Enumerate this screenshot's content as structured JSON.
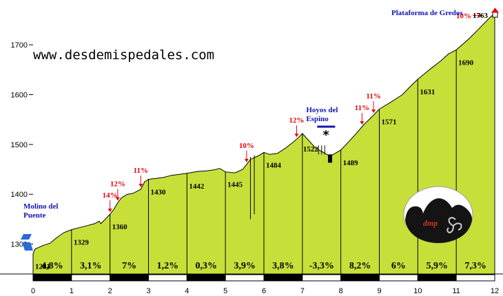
{
  "website": "www.desdemispedales.com",
  "logo": {
    "text": "dmp"
  },
  "colors": {
    "fill": "#c8df3a",
    "stroke": "#000000",
    "steep": "#e8000b",
    "place": "#1414b4"
  },
  "chart_data": {
    "type": "area",
    "xlim": [
      0,
      12
    ],
    "ylim": [
      1240,
      1790
    ],
    "x_ticks": [
      "0",
      "1",
      "2",
      "3",
      "4",
      "5",
      "6",
      "7",
      "8",
      "9",
      "10",
      "11",
      "12"
    ],
    "y_ticks": [
      1300,
      1400,
      1500,
      1600,
      1700
    ],
    "profile": [
      [
        0,
        1281
      ],
      [
        0.05,
        1290
      ],
      [
        0.25,
        1297
      ],
      [
        0.45,
        1302
      ],
      [
        0.6,
        1312
      ],
      [
        0.8,
        1323
      ],
      [
        1,
        1329
      ],
      [
        1.2,
        1333
      ],
      [
        1.4,
        1337
      ],
      [
        1.6,
        1341
      ],
      [
        1.72,
        1346
      ],
      [
        1.76,
        1341
      ],
      [
        1.85,
        1348
      ],
      [
        2,
        1360
      ],
      [
        2.1,
        1370
      ],
      [
        2.2,
        1383
      ],
      [
        2.3,
        1393
      ],
      [
        2.45,
        1400
      ],
      [
        2.6,
        1402
      ],
      [
        2.8,
        1410
      ],
      [
        2.9,
        1425
      ],
      [
        3,
        1430
      ],
      [
        3.2,
        1432
      ],
      [
        3.4,
        1434
      ],
      [
        3.6,
        1438
      ],
      [
        3.8,
        1440
      ],
      [
        4,
        1442
      ],
      [
        4.3,
        1446
      ],
      [
        4.5,
        1447
      ],
      [
        4.7,
        1449
      ],
      [
        4.85,
        1452
      ],
      [
        5,
        1445
      ],
      [
        5.25,
        1443
      ],
      [
        5.45,
        1450
      ],
      [
        5.55,
        1460
      ],
      [
        5.65,
        1470
      ],
      [
        5.85,
        1477
      ],
      [
        6,
        1484
      ],
      [
        6.15,
        1480
      ],
      [
        6.35,
        1482
      ],
      [
        6.55,
        1492
      ],
      [
        6.75,
        1504
      ],
      [
        6.9,
        1514
      ],
      [
        7,
        1522
      ],
      [
        7.2,
        1505
      ],
      [
        7.35,
        1492
      ],
      [
        7.55,
        1484
      ],
      [
        7.72,
        1476
      ],
      [
        8,
        1489
      ],
      [
        8.2,
        1505
      ],
      [
        8.4,
        1522
      ],
      [
        8.6,
        1540
      ],
      [
        8.8,
        1555
      ],
      [
        9,
        1571
      ],
      [
        9.3,
        1585
      ],
      [
        9.6,
        1600
      ],
      [
        9.85,
        1620
      ],
      [
        10,
        1631
      ],
      [
        10.3,
        1650
      ],
      [
        10.6,
        1668
      ],
      [
        10.8,
        1682
      ],
      [
        11,
        1690
      ],
      [
        11.3,
        1710
      ],
      [
        11.6,
        1733
      ],
      [
        11.85,
        1753
      ],
      [
        12,
        1763
      ]
    ],
    "points": [
      {
        "km": 0,
        "alt": 1281
      },
      {
        "km": 1,
        "alt": 1329
      },
      {
        "km": 2,
        "alt": 1360
      },
      {
        "km": 3,
        "alt": 1430
      },
      {
        "km": 4,
        "alt": 1442
      },
      {
        "km": 5,
        "alt": 1445
      },
      {
        "km": 6,
        "alt": 1484
      },
      {
        "km": 7,
        "alt": 1522
      },
      {
        "km": 8,
        "alt": 1489
      },
      {
        "km": 9,
        "alt": 1571
      },
      {
        "km": 10,
        "alt": 1631
      },
      {
        "km": 11,
        "alt": 1690
      },
      {
        "km": 12,
        "alt": 1763
      }
    ],
    "gradients": [
      "4,8%",
      "3,1%",
      "7%",
      "1,2%",
      "0,3%",
      "3,9%",
      "3,8%",
      "-3,3%",
      "8,2%",
      "6%",
      "5,9%",
      "7,3%"
    ],
    "steep_sections": [
      {
        "label": "14%",
        "km": 2.0
      },
      {
        "label": "12%",
        "km": 2.2
      },
      {
        "label": "11%",
        "km": 2.8
      },
      {
        "label": "10%",
        "km": 5.55
      },
      {
        "label": "12%",
        "km": 6.85
      },
      {
        "label": "11%",
        "km": 8.55
      },
      {
        "label": "11%",
        "km": 8.85
      },
      {
        "label": "10%",
        "km": 11.75
      }
    ],
    "places": [
      {
        "name_lines": [
          "Molino del",
          "Puente"
        ],
        "km": 0
      },
      {
        "name_lines": [
          "Hoyos del",
          "Espino"
        ],
        "km": 7.6
      },
      {
        "name_lines": [
          "Plataforma de Gredos"
        ],
        "km": 12
      }
    ],
    "summit_label": "1763"
  }
}
